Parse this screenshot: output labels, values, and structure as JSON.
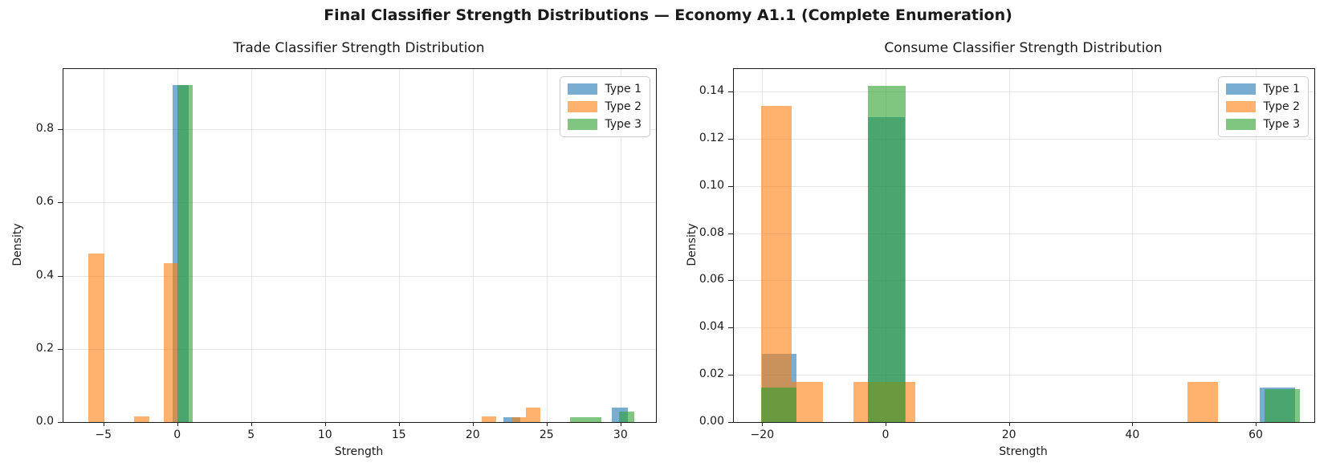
{
  "figure": {
    "suptitle": "Final Classifier Strength Distributions — Economy A1.1 (Complete Enumeration)"
  },
  "colors": {
    "type1": "#1f77b4",
    "type2": "#ff7f0e",
    "type3": "#2ca02c",
    "bar_alpha": 0.6,
    "grid": "#e6e6e6",
    "spine": "#1a1a1a"
  },
  "chart_data": [
    {
      "type": "bar",
      "subtype": "overlapping-histogram",
      "title": "Trade Classifier Strength Distribution",
      "xlabel": "Strength",
      "ylabel": "Density",
      "xlim": [
        -7.7,
        32.4
      ],
      "ylim": [
        0,
        0.9644
      ],
      "grid": true,
      "legend_position": "upper right",
      "xticks": [
        {
          "v": -5,
          "label": "−5"
        },
        {
          "v": 0,
          "label": "0"
        },
        {
          "v": 5,
          "label": "5"
        },
        {
          "v": 10,
          "label": "10"
        },
        {
          "v": 15,
          "label": "15"
        },
        {
          "v": 20,
          "label": "20"
        },
        {
          "v": 25,
          "label": "25"
        },
        {
          "v": 30,
          "label": "30"
        }
      ],
      "yticks": [
        {
          "v": 0.0,
          "label": "0.0"
        },
        {
          "v": 0.2,
          "label": "0.2"
        },
        {
          "v": 0.4,
          "label": "0.4"
        },
        {
          "v": 0.6,
          "label": "0.6"
        },
        {
          "v": 0.8,
          "label": "0.8"
        }
      ],
      "series": [
        {
          "name": "Type 1",
          "color": "#1f77b4",
          "bars": [
            {
              "x0": -0.3,
              "x1": 0.75,
              "density": 0.92
            },
            {
              "x0": 22.1,
              "x1": 23.2,
              "density": 0.013
            },
            {
              "x0": 29.4,
              "x1": 30.5,
              "density": 0.04
            }
          ]
        },
        {
          "name": "Type 2",
          "color": "#ff7f0e",
          "bars": [
            {
              "x0": -6.0,
              "x1": -4.95,
              "density": 0.46
            },
            {
              "x0": -2.9,
              "x1": -1.9,
              "density": 0.015
            },
            {
              "x0": -0.9,
              "x1": 0.05,
              "density": 0.435
            },
            {
              "x0": 20.6,
              "x1": 21.6,
              "density": 0.015
            },
            {
              "x0": 22.6,
              "x1": 23.6,
              "density": 0.013
            },
            {
              "x0": 23.6,
              "x1": 24.6,
              "density": 0.04
            }
          ]
        },
        {
          "name": "Type 3",
          "color": "#2ca02c",
          "bars": [
            {
              "x0": 0.0,
              "x1": 1.05,
              "density": 0.92
            },
            {
              "x0": 26.6,
              "x1": 27.65,
              "density": 0.013
            },
            {
              "x0": 27.65,
              "x1": 28.7,
              "density": 0.013
            },
            {
              "x0": 29.9,
              "x1": 30.95,
              "density": 0.028
            }
          ]
        }
      ]
    },
    {
      "type": "bar",
      "subtype": "overlapping-histogram",
      "title": "Consume Classifier Strength Distribution",
      "xlabel": "Strength",
      "ylabel": "Density",
      "xlim": [
        -24.6,
        69.5
      ],
      "ylim": [
        0,
        0.1495
      ],
      "grid": true,
      "legend_position": "upper right",
      "xticks": [
        {
          "v": -20,
          "label": "−20"
        },
        {
          "v": 0,
          "label": "0"
        },
        {
          "v": 20,
          "label": "20"
        },
        {
          "v": 40,
          "label": "40"
        },
        {
          "v": 60,
          "label": "60"
        }
      ],
      "yticks": [
        {
          "v": 0.0,
          "label": "0.00"
        },
        {
          "v": 0.02,
          "label": "0.02"
        },
        {
          "v": 0.04,
          "label": "0.04"
        },
        {
          "v": 0.06,
          "label": "0.06"
        },
        {
          "v": 0.08,
          "label": "0.08"
        },
        {
          "v": 0.1,
          "label": "0.10"
        },
        {
          "v": 0.12,
          "label": "0.12"
        },
        {
          "v": 0.14,
          "label": "0.14"
        }
      ],
      "series": [
        {
          "name": "Type 1",
          "color": "#1f77b4",
          "bars": [
            {
              "x0": -20.1,
              "x1": -14.4,
              "density": 0.029
            },
            {
              "x0": -2.8,
              "x1": 3.1,
              "density": 0.129
            },
            {
              "x0": 60.7,
              "x1": 66.4,
              "density": 0.0145
            }
          ]
        },
        {
          "name": "Type 2",
          "color": "#ff7f0e",
          "bars": [
            {
              "x0": -20.2,
              "x1": -15.2,
              "density": 0.134
            },
            {
              "x0": -15.2,
              "x1": -10.2,
              "density": 0.017
            },
            {
              "x0": -5.2,
              "x1": -0.2,
              "density": 0.017
            },
            {
              "x0": -0.2,
              "x1": 4.8,
              "density": 0.017
            },
            {
              "x0": 48.9,
              "x1": 53.9,
              "density": 0.017
            }
          ]
        },
        {
          "name": "Type 3",
          "color": "#2ca02c",
          "bars": [
            {
              "x0": -20.2,
              "x1": -14.4,
              "density": 0.0145
            },
            {
              "x0": -2.9,
              "x1": 3.2,
              "density": 0.1425
            },
            {
              "x0": 61.4,
              "x1": 67.1,
              "density": 0.014
            }
          ]
        }
      ]
    }
  ]
}
